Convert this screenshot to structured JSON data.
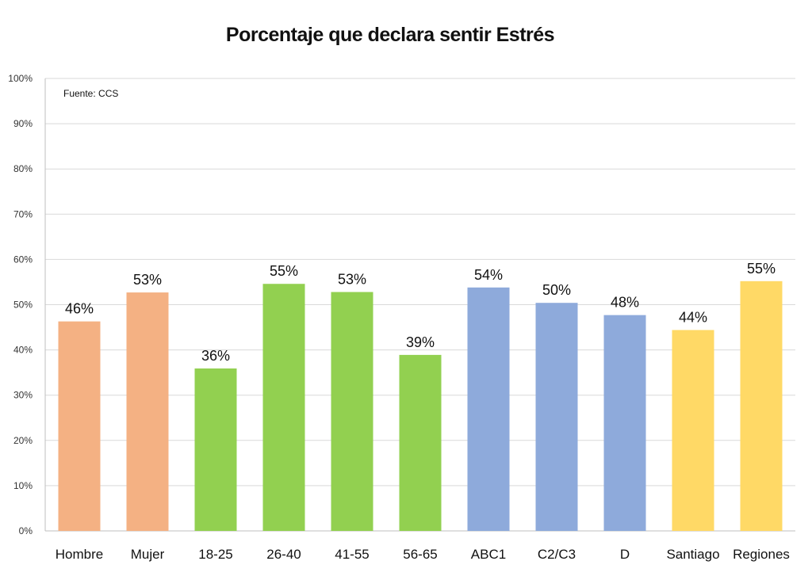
{
  "chart_data": {
    "type": "bar",
    "title": "Porcentaje que declara sentir Estrés",
    "annotation": "Fuente: CCS",
    "categories": [
      "Hombre",
      "Mujer",
      "18-25",
      "26-40",
      "41-55",
      "56-65",
      "ABC1",
      "C2/C3",
      "D",
      "Santiago",
      "Regiones"
    ],
    "values": [
      46.3,
      52.7,
      35.9,
      54.6,
      52.8,
      38.9,
      53.8,
      50.4,
      47.7,
      44.4,
      55.2
    ],
    "data_labels": [
      "46%",
      "53%",
      "36%",
      "55%",
      "53%",
      "39%",
      "54%",
      "50%",
      "48%",
      "44%",
      "55%"
    ],
    "bar_colors": [
      "#f4b183",
      "#f4b183",
      "#92d050",
      "#92d050",
      "#92d050",
      "#92d050",
      "#8eaadb",
      "#8eaadb",
      "#8eaadb",
      "#ffd966",
      "#ffd966"
    ],
    "ylim": [
      0,
      100
    ],
    "yticks": [
      "0%",
      "10%",
      "20%",
      "30%",
      "40%",
      "50%",
      "60%",
      "70%",
      "80%",
      "90%",
      "100%"
    ],
    "grid": true,
    "legend": "none"
  }
}
